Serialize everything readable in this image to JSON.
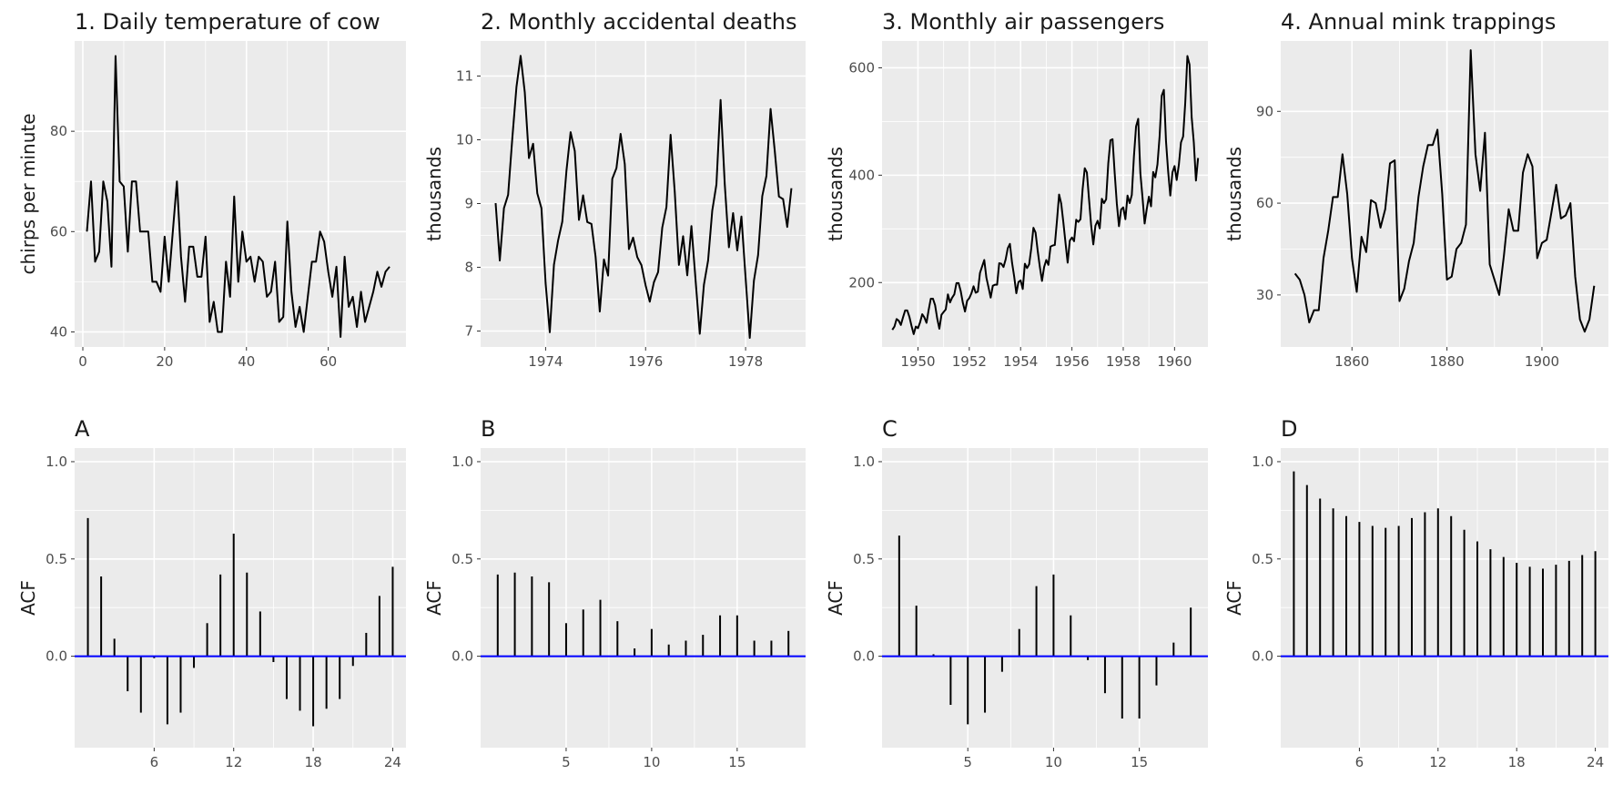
{
  "chart_data": [
    {
      "type": "line",
      "title": "1. Daily temperature of cow",
      "ylabel": "chirps per minute",
      "xlim": [
        -2,
        79
      ],
      "ylim": [
        37,
        98
      ],
      "xticks": [
        0,
        20,
        40,
        60
      ],
      "xtick_labels": [
        "0",
        "20",
        "40",
        "60"
      ],
      "yticks": [
        40,
        60,
        80
      ],
      "ytick_labels": [
        "40",
        "60",
        "80"
      ],
      "x": [
        1,
        2,
        3,
        4,
        5,
        6,
        7,
        8,
        9,
        10,
        11,
        12,
        13,
        14,
        15,
        16,
        17,
        18,
        19,
        20,
        21,
        22,
        23,
        24,
        25,
        26,
        27,
        28,
        29,
        30,
        31,
        32,
        33,
        34,
        35,
        36,
        37,
        38,
        39,
        40,
        41,
        42,
        43,
        44,
        45,
        46,
        47,
        48,
        49,
        50,
        51,
        52,
        53,
        54,
        55,
        56,
        57,
        58,
        59,
        60,
        61,
        62,
        63,
        64,
        65,
        66,
        67,
        68,
        69,
        70,
        71,
        72,
        73,
        74,
        75
      ],
      "values": [
        60,
        70,
        54,
        56,
        70,
        66,
        53,
        95,
        70,
        69,
        56,
        70,
        70,
        60,
        60,
        60,
        50,
        50,
        48,
        59,
        50,
        60,
        70,
        55,
        46,
        57,
        57,
        51,
        51,
        59,
        42,
        46,
        40,
        40,
        54,
        47,
        67,
        50,
        60,
        54,
        55,
        50,
        55,
        54,
        47,
        48,
        54,
        42,
        43,
        62,
        48,
        41,
        45,
        40,
        47,
        54,
        54,
        60,
        58,
        52,
        47,
        53,
        39,
        55,
        45,
        47,
        41,
        48,
        42,
        45,
        48,
        52,
        49,
        52,
        53
      ]
    },
    {
      "type": "line",
      "title": "2. Monthly accidental deaths",
      "ylabel": "thousands",
      "xlim": [
        1972.7,
        1979.2
      ],
      "ylim": [
        6.75,
        11.55
      ],
      "xticks": [
        1974,
        1976,
        1978
      ],
      "xtick_labels": [
        "1974",
        "1976",
        "1978"
      ],
      "yticks": [
        7,
        8,
        9,
        10,
        11
      ],
      "ytick_labels": [
        "7",
        "8",
        "9",
        "10",
        "11"
      ],
      "x_start": 1973,
      "x_step": 0.0833333,
      "values": [
        9.007,
        8.106,
        8.928,
        9.137,
        10.017,
        10.826,
        11.317,
        10.744,
        9.713,
        9.938,
        9.161,
        8.927,
        7.75,
        6.981,
        8.038,
        8.422,
        8.714,
        9.512,
        10.12,
        9.823,
        8.743,
        9.129,
        8.71,
        8.68,
        8.162,
        7.306,
        8.124,
        7.87,
        9.387,
        9.556,
        10.093,
        9.62,
        8.285,
        8.466,
        8.16,
        8.034,
        7.717,
        7.461,
        7.767,
        7.925,
        8.623,
        8.945,
        10.078,
        9.179,
        8.037,
        8.488,
        7.874,
        8.647,
        7.792,
        6.957,
        7.726,
        8.106,
        8.89,
        9.299,
        10.625,
        9.302,
        8.314,
        8.85,
        8.265,
        8.796,
        7.836,
        6.892,
        7.791,
        8.192,
        9.115,
        9.434,
        10.484,
        9.827,
        9.11,
        9.07,
        8.633,
        9.24
      ]
    },
    {
      "type": "line",
      "title": "3. Monthly air passengers",
      "ylabel": "thousands",
      "xlim": [
        1948.6,
        1961.3
      ],
      "ylim": [
        80,
        650
      ],
      "xticks": [
        1950,
        1952,
        1954,
        1956,
        1958,
        1960
      ],
      "xtick_labels": [
        "1950",
        "1952",
        "1954",
        "1956",
        "1958",
        "1960"
      ],
      "yticks": [
        200,
        400,
        600
      ],
      "ytick_labels": [
        "200",
        "400",
        "600"
      ],
      "x_start": 1949,
      "x_step": 0.0833333,
      "values": [
        112,
        118,
        132,
        129,
        121,
        135,
        148,
        148,
        136,
        119,
        104,
        118,
        115,
        126,
        141,
        135,
        125,
        149,
        170,
        170,
        158,
        133,
        114,
        140,
        145,
        150,
        178,
        163,
        172,
        178,
        199,
        199,
        184,
        162,
        146,
        166,
        171,
        180,
        193,
        181,
        183,
        218,
        230,
        242,
        209,
        191,
        172,
        194,
        196,
        196,
        236,
        235,
        229,
        243,
        264,
        272,
        237,
        211,
        180,
        201,
        204,
        188,
        235,
        227,
        234,
        264,
        302,
        293,
        259,
        229,
        203,
        229,
        242,
        233,
        267,
        269,
        270,
        315,
        364,
        347,
        312,
        274,
        237,
        278,
        284,
        277,
        317,
        313,
        318,
        374,
        413,
        405,
        355,
        306,
        271,
        306,
        315,
        301,
        356,
        348,
        355,
        422,
        465,
        467,
        404,
        347,
        305,
        336,
        340,
        318,
        362,
        348,
        363,
        435,
        491,
        505,
        404,
        359,
        310,
        337,
        360,
        342,
        406,
        396,
        420,
        472,
        548,
        559,
        463,
        407,
        362,
        405,
        417,
        391,
        419,
        461,
        472,
        535,
        622,
        606,
        508,
        461,
        390,
        432
      ]
    },
    {
      "type": "line",
      "title": "4. Annual mink trappings",
      "ylabel": "thousands",
      "xlim": [
        1845,
        1914
      ],
      "ylim": [
        13,
        113
      ],
      "xticks": [
        1860,
        1880,
        1900
      ],
      "xtick_labels": [
        "1860",
        "1880",
        "1900"
      ],
      "yticks": [
        30,
        60,
        90
      ],
      "ytick_labels": [
        "30",
        "60",
        "90"
      ],
      "x_start": 1848,
      "x_step": 1,
      "values": [
        37,
        35,
        30,
        21,
        25,
        25,
        42,
        51,
        62,
        62,
        76,
        63,
        42,
        31,
        49,
        44,
        61,
        60,
        52,
        58,
        73,
        74,
        28,
        32,
        41,
        47,
        62,
        72,
        79,
        79,
        84,
        63,
        35,
        36,
        45,
        47,
        53,
        110,
        76,
        64,
        83,
        40,
        35,
        30,
        43,
        58,
        51,
        51,
        70,
        76,
        72,
        42,
        47,
        48,
        57,
        66,
        55,
        56,
        60,
        36,
        22,
        18,
        22,
        33
      ]
    },
    {
      "type": "bar",
      "title": "A",
      "ylabel": "ACF",
      "xlim": [
        0,
        25
      ],
      "ylim": [
        -0.47,
        1.07
      ],
      "xticks": [
        6,
        12,
        18,
        24
      ],
      "xtick_labels": [
        "6",
        "12",
        "18",
        "24"
      ],
      "yticks": [
        0.0,
        0.5,
        1.0
      ],
      "ytick_labels": [
        "0.0",
        "0.5",
        "1.0"
      ],
      "x_start": 1,
      "x_step": 1,
      "values": [
        0.71,
        0.41,
        0.09,
        -0.18,
        -0.29,
        -0.01,
        -0.35,
        -0.29,
        -0.06,
        0.17,
        0.42,
        0.63,
        0.43,
        0.23,
        -0.03,
        -0.22,
        -0.28,
        -0.36,
        -0.27,
        -0.22,
        -0.05,
        0.12,
        0.31,
        0.46
      ]
    },
    {
      "type": "bar",
      "title": "B",
      "ylabel": "ACF",
      "xlim": [
        0,
        19
      ],
      "ylim": [
        -0.47,
        1.07
      ],
      "xticks": [
        5,
        10,
        15
      ],
      "xtick_labels": [
        "5",
        "10",
        "15"
      ],
      "yticks": [
        0.0,
        0.5,
        1.0
      ],
      "ytick_labels": [
        "0.0",
        "0.5",
        "1.0"
      ],
      "x_start": 1,
      "x_step": 1,
      "values": [
        0.42,
        0.43,
        0.41,
        0.38,
        0.17,
        0.24,
        0.29,
        0.18,
        0.04,
        0.14,
        0.06,
        0.08,
        0.11,
        0.21,
        0.21,
        0.08,
        0.08,
        0.13
      ]
    },
    {
      "type": "bar",
      "title": "C",
      "ylabel": "ACF",
      "xlim": [
        0,
        19
      ],
      "ylim": [
        -0.47,
        1.07
      ],
      "xticks": [
        5,
        10,
        15
      ],
      "xtick_labels": [
        "5",
        "10",
        "15"
      ],
      "yticks": [
        0.0,
        0.5,
        1.0
      ],
      "ytick_labels": [
        "0.0",
        "0.5",
        "1.0"
      ],
      "x_start": 1,
      "x_step": 1,
      "values": [
        0.62,
        0.26,
        0.01,
        -0.25,
        -0.35,
        -0.29,
        -0.08,
        0.14,
        0.36,
        0.42,
        0.21,
        -0.02,
        -0.19,
        -0.32,
        -0.32,
        -0.15,
        0.07,
        0.25
      ]
    },
    {
      "type": "bar",
      "title": "D",
      "ylabel": "ACF",
      "xlim": [
        0,
        25
      ],
      "ylim": [
        -0.47,
        1.07
      ],
      "xticks": [
        6,
        12,
        18,
        24
      ],
      "xtick_labels": [
        "6",
        "12",
        "18",
        "24"
      ],
      "yticks": [
        0.0,
        0.5,
        1.0
      ],
      "ytick_labels": [
        "0.0",
        "0.5",
        "1.0"
      ],
      "x_start": 1,
      "x_step": 1,
      "values": [
        0.95,
        0.88,
        0.81,
        0.76,
        0.72,
        0.69,
        0.67,
        0.66,
        0.67,
        0.71,
        0.74,
        0.76,
        0.72,
        0.65,
        0.59,
        0.55,
        0.51,
        0.48,
        0.46,
        0.45,
        0.47,
        0.49,
        0.52,
        0.54
      ]
    }
  ],
  "colors": {
    "panel_background": "#ebebeb",
    "grid_line": "#ffffff",
    "series_line": "#000000",
    "zero_line": "#0000ff",
    "tick_text": "#4d4d4d",
    "title_text": "#1a1a1a"
  }
}
